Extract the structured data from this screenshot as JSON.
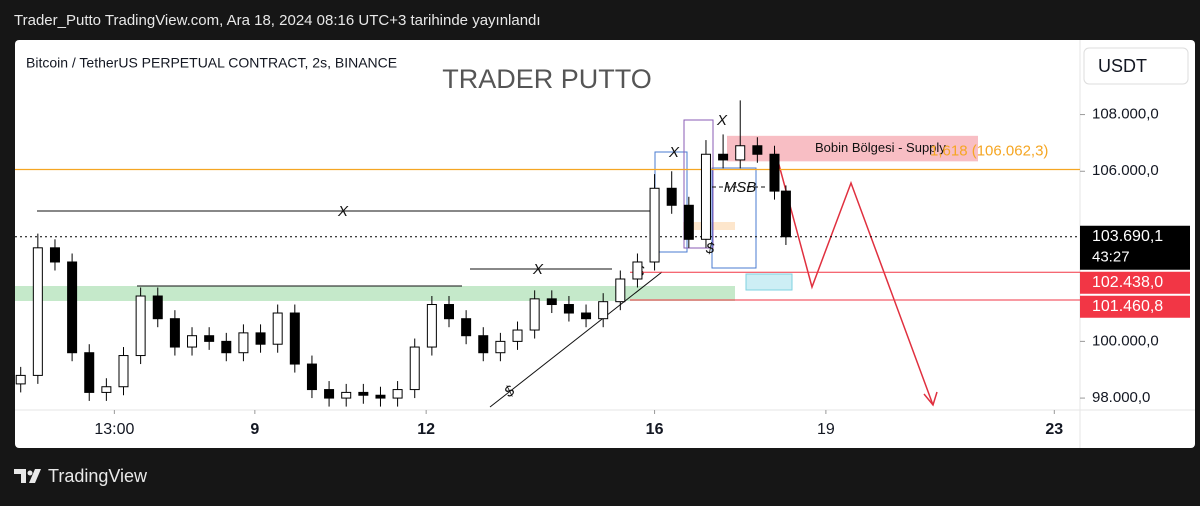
{
  "chart_data": {
    "type": "candlestick",
    "header": "Trader_Putto TradingView.com, Ara 18, 2024 08:16 UTC+3 tarihinde yayınlandı",
    "title": "Bitcoin / TetherUS PERPETUAL CONTRACT, 2s, BINANCE",
    "watermark": "TRADER PUTTO",
    "currency": "USDT",
    "footer": "TradingView",
    "up_color": "#ffffff",
    "down_color": "#000000",
    "x": [
      4.9,
      5.2,
      5.5,
      5.8,
      6.1,
      6.4,
      6.7,
      7.0,
      7.3,
      7.6,
      7.9,
      8.2,
      8.5,
      8.8,
      9.1,
      9.4,
      9.7,
      10.0,
      10.3,
      10.6,
      10.9,
      11.2,
      11.5,
      11.8,
      12.1,
      12.4,
      12.7,
      13.0,
      13.3,
      13.6,
      13.9,
      14.2,
      14.5,
      14.8,
      15.1,
      15.4,
      15.7,
      16.0,
      16.3,
      16.6,
      16.9,
      17.2,
      17.5,
      17.8,
      18.1,
      18.3
    ],
    "open": [
      98500,
      98800,
      103300,
      102800,
      99600,
      98200,
      98400,
      99500,
      101600,
      100800,
      99800,
      100200,
      100000,
      99600,
      100300,
      99900,
      101000,
      99200,
      98300,
      98000,
      98200,
      98100,
      98000,
      98300,
      99800,
      101300,
      100800,
      100200,
      99600,
      100000,
      100400,
      101500,
      101300,
      101000,
      100800,
      101400,
      102200,
      102800,
      105400,
      104800,
      103600,
      106600,
      106400,
      106900,
      106600,
      105300
    ],
    "high": [
      99100,
      103800,
      103600,
      103100,
      99900,
      98700,
      99800,
      101900,
      101900,
      101100,
      100500,
      100500,
      100300,
      100600,
      100600,
      101300,
      101300,
      99500,
      98600,
      98500,
      98500,
      98400,
      98600,
      100100,
      101600,
      101600,
      101100,
      100500,
      100300,
      100700,
      101800,
      101800,
      101600,
      101300,
      101700,
      102500,
      103100,
      105900,
      106000,
      105100,
      107100,
      107300,
      108500,
      107200,
      106900,
      105500
    ],
    "low": [
      98200,
      98500,
      102500,
      99300,
      97900,
      97900,
      98100,
      99200,
      100500,
      99500,
      99500,
      99700,
      99300,
      99300,
      99600,
      99600,
      98900,
      98000,
      97700,
      97700,
      97800,
      97700,
      97700,
      98000,
      99500,
      100500,
      99900,
      99300,
      99300,
      99700,
      100100,
      101000,
      100700,
      100500,
      100500,
      101100,
      101900,
      102500,
      104500,
      103300,
      103300,
      106100,
      106100,
      106300,
      105000,
      103400
    ],
    "close": [
      98800,
      103300,
      102800,
      99600,
      98200,
      98400,
      99500,
      101600,
      100800,
      99800,
      100200,
      100000,
      99600,
      100300,
      99900,
      101000,
      99200,
      98300,
      98000,
      98200,
      98100,
      98000,
      98300,
      99800,
      101300,
      100800,
      100200,
      99600,
      100000,
      100400,
      101500,
      101300,
      101000,
      100800,
      101400,
      102200,
      102800,
      105400,
      104800,
      103600,
      106600,
      106400,
      106900,
      106600,
      105300,
      103690.1
    ],
    "xlim": [
      4.8,
      23.45
    ],
    "ylim": [
      97650,
      110630
    ],
    "xticks": [
      {
        "value": 6.54,
        "label": "13:00"
      },
      9,
      12,
      16,
      19,
      23
    ],
    "yticks": [
      {
        "value": 98000,
        "label": "98.000,0"
      },
      {
        "value": 100000,
        "label": "100.000,0"
      },
      {
        "value": 106000,
        "label": "106.000,0"
      },
      {
        "value": 108000,
        "label": "108.000,0"
      }
    ],
    "price_lines": [
      {
        "value": 103690.1,
        "label": "103.690,1",
        "color": "#000000"
      },
      {
        "value": 102438,
        "label": "102.438,0",
        "color": "#f23645"
      },
      {
        "value": 101460.8,
        "label": "101.460,8",
        "color": "#f23645"
      }
    ],
    "countdown": "43:27",
    "fib_line": {
      "value": 106062.3,
      "label": "1,618 (106.062,3)",
      "color": "#f5a623"
    },
    "supply_zone": {
      "label": "Bobin Bölgesi - Supply",
      "top": 107250,
      "bottom": 106350,
      "color": "#f7b3ba"
    },
    "annotations": [
      "X",
      "X",
      "X",
      "X",
      "MSB",
      "$",
      "$",
      "$"
    ]
  }
}
